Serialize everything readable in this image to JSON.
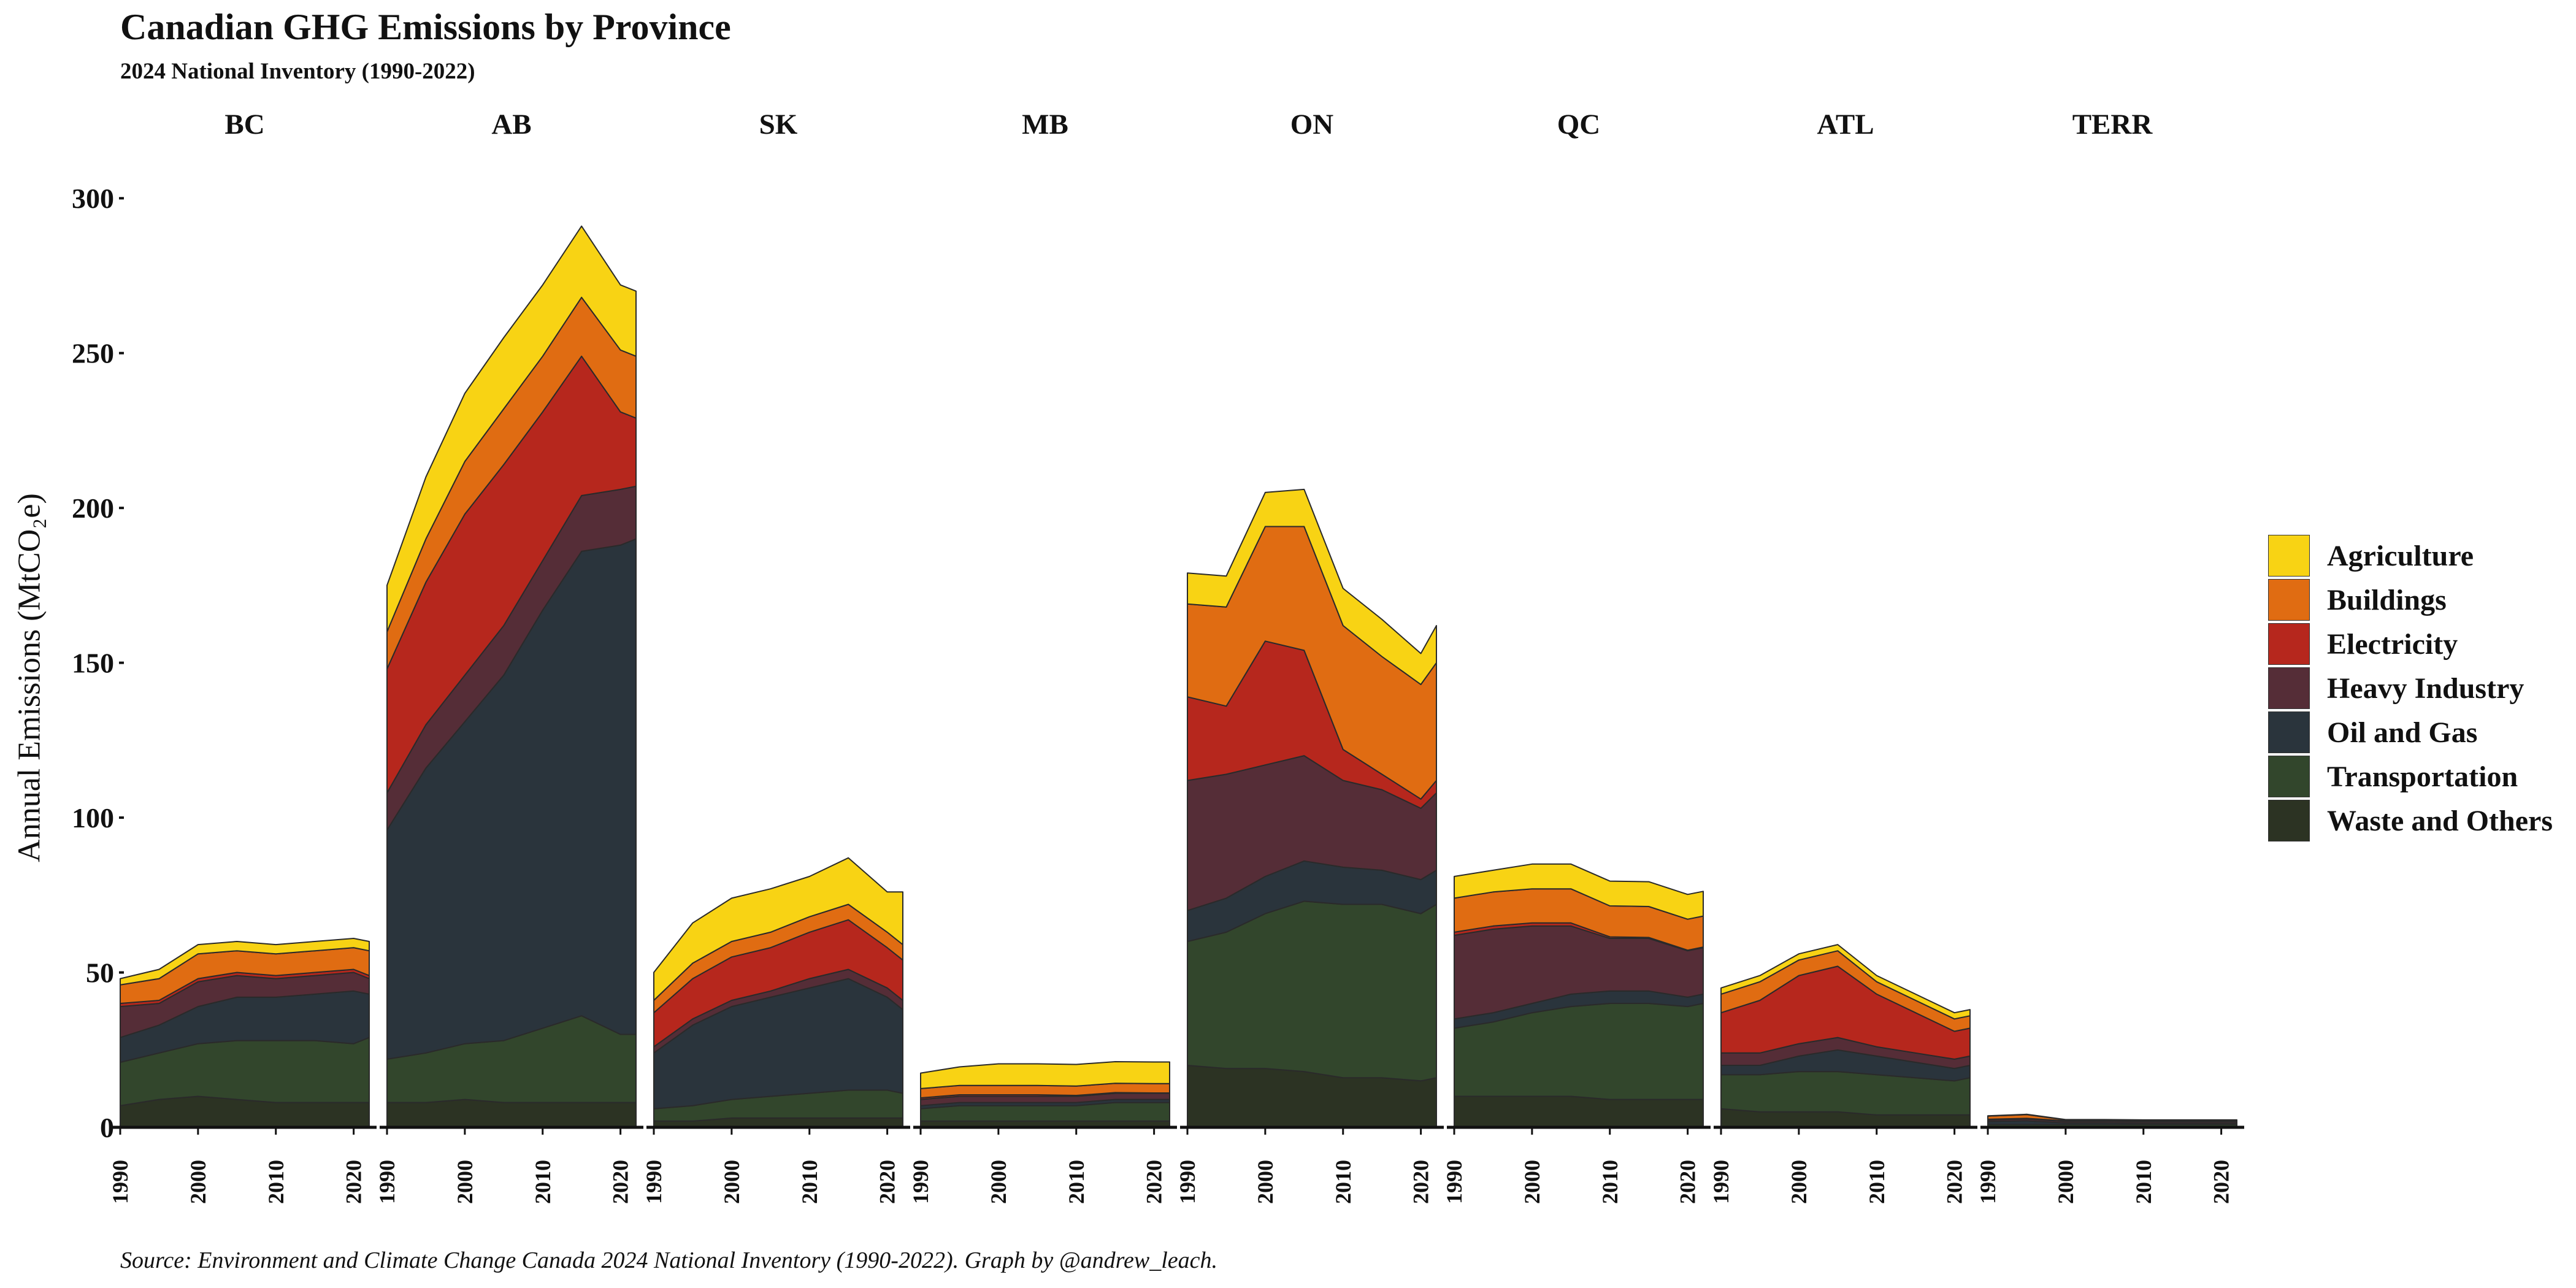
{
  "header": {
    "title": "Canadian GHG Emissions by Province",
    "subtitle": "2024 National Inventory (1990-2022)"
  },
  "caption": "Source: Environment and Climate Change Canada 2024 National Inventory (1990-2022). Graph by @andrew_leach.",
  "y_axis_label": "Annual Emissions  (MtCO₂e)",
  "colors": {
    "Agriculture": "#F8D314",
    "Buildings": "#E06C12",
    "Electricity": "#B6271D",
    "Heavy Industry": "#552D37",
    "Oil and Gas": "#2A343C",
    "Transportation": "#32462C",
    "Waste and Others": "#2C3323"
  },
  "legend": [
    "Agriculture",
    "Buildings",
    "Electricity",
    "Heavy Industry",
    "Oil and Gas",
    "Transportation",
    "Waste and Others"
  ],
  "chart_data": {
    "type": "area",
    "stacked": true,
    "facets": [
      "BC",
      "AB",
      "SK",
      "MB",
      "ON",
      "QC",
      "ATL",
      "TERR"
    ],
    "x": [
      1990,
      1995,
      2000,
      2005,
      2010,
      2015,
      2020,
      2022
    ],
    "x_ticks": [
      "1990",
      "2000",
      "2010",
      "2020"
    ],
    "ylim": [
      0,
      305
    ],
    "y_ticks": [
      0,
      50,
      100,
      150,
      200,
      250,
      300
    ],
    "stack_order_bottom_to_top": [
      "Waste and Others",
      "Transportation",
      "Oil and Gas",
      "Heavy Industry",
      "Electricity",
      "Buildings",
      "Agriculture"
    ],
    "series": {
      "BC": {
        "Waste and Others": [
          7,
          9,
          10,
          9,
          8,
          8,
          8,
          8
        ],
        "Transportation": [
          14,
          15,
          17,
          19,
          20,
          20,
          19,
          21
        ],
        "Oil and Gas": [
          8,
          9,
          12,
          14,
          14,
          15,
          17,
          14
        ],
        "Heavy Industry": [
          10,
          7,
          8,
          7,
          6,
          6,
          6,
          5
        ],
        "Electricity": [
          1,
          1,
          1,
          1,
          1,
          1,
          1,
          1
        ],
        "Buildings": [
          6,
          7,
          8,
          7,
          7,
          7,
          7,
          8
        ],
        "Agriculture": [
          2,
          3,
          3,
          3,
          3,
          3,
          3,
          3
        ]
      },
      "AB": {
        "Waste and Others": [
          8,
          8,
          9,
          8,
          8,
          8,
          8,
          8
        ],
        "Transportation": [
          14,
          16,
          18,
          20,
          24,
          28,
          22,
          22
        ],
        "Oil and Gas": [
          74,
          92,
          104,
          118,
          135,
          150,
          158,
          160
        ],
        "Heavy Industry": [
          12,
          14,
          15,
          16,
          16,
          18,
          18,
          17
        ],
        "Electricity": [
          40,
          46,
          52,
          52,
          48,
          45,
          25,
          22
        ],
        "Buildings": [
          12,
          14,
          17,
          18,
          18,
          19,
          20,
          20
        ],
        "Agriculture": [
          15,
          20,
          22,
          23,
          23,
          23,
          21,
          21
        ]
      },
      "SK": {
        "Waste and Others": [
          2,
          2,
          3,
          3,
          3,
          3,
          3,
          3
        ],
        "Transportation": [
          4,
          5,
          6,
          7,
          8,
          9,
          9,
          8
        ],
        "Oil and Gas": [
          18,
          26,
          30,
          32,
          34,
          36,
          30,
          27
        ],
        "Heavy Industry": [
          2,
          2,
          2,
          2,
          3,
          3,
          3,
          3
        ],
        "Electricity": [
          11,
          13,
          14,
          14,
          15,
          16,
          13,
          13
        ],
        "Buildings": [
          4,
          5,
          5,
          5,
          5,
          5,
          5,
          5
        ],
        "Agriculture": [
          9,
          13,
          14,
          14,
          13,
          15,
          13,
          17
        ]
      },
      "MB": {
        "Waste and Others": [
          2,
          2,
          2,
          2,
          2,
          2,
          2,
          2
        ],
        "Transportation": [
          4,
          5,
          5,
          5,
          5,
          6,
          6,
          6
        ],
        "Oil and Gas": [
          1,
          1,
          1,
          1,
          1,
          1,
          1,
          1
        ],
        "Heavy Industry": [
          2,
          2,
          2,
          2,
          2,
          2,
          2,
          2
        ],
        "Electricity": [
          0.5,
          0.5,
          0.5,
          0.5,
          0.3,
          0.2,
          0.1,
          0.1
        ],
        "Buildings": [
          3,
          3,
          3,
          3,
          3,
          3,
          3,
          3
        ],
        "Agriculture": [
          5,
          6,
          7,
          7,
          7,
          7,
          7,
          7
        ]
      },
      "ON": {
        "Waste and Others": [
          20,
          19,
          19,
          18,
          16,
          16,
          15,
          16
        ],
        "Transportation": [
          40,
          44,
          50,
          55,
          56,
          56,
          54,
          56
        ],
        "Oil and Gas": [
          10,
          11,
          12,
          13,
          12,
          11,
          11,
          11
        ],
        "Heavy Industry": [
          42,
          40,
          36,
          34,
          28,
          26,
          23,
          25
        ],
        "Electricity": [
          27,
          22,
          40,
          34,
          10,
          5,
          3,
          4
        ],
        "Buildings": [
          30,
          32,
          37,
          40,
          40,
          38,
          37,
          38
        ],
        "Agriculture": [
          10,
          10,
          11,
          12,
          12,
          12,
          10,
          12
        ]
      },
      "QC": {
        "Waste and Others": [
          10,
          10,
          10,
          10,
          9,
          9,
          9,
          9
        ],
        "Transportation": [
          22,
          24,
          27,
          29,
          31,
          31,
          30,
          31
        ],
        "Oil and Gas": [
          3,
          3,
          3,
          4,
          4,
          4,
          3,
          3
        ],
        "Heavy Industry": [
          27,
          27,
          25,
          22,
          17,
          17,
          15,
          15
        ],
        "Electricity": [
          1,
          1,
          1,
          1,
          0.5,
          0.3,
          0.2,
          0.2
        ],
        "Buildings": [
          11,
          11,
          11,
          11,
          10,
          10,
          10,
          10
        ],
        "Agriculture": [
          7,
          7,
          8,
          8,
          8,
          8,
          8,
          8
        ]
      },
      "ATL": {
        "Waste and Others": [
          6,
          5,
          5,
          5,
          4,
          4,
          4,
          4
        ],
        "Transportation": [
          11,
          12,
          13,
          13,
          13,
          12,
          11,
          12
        ],
        "Oil and Gas": [
          3,
          3,
          5,
          7,
          6,
          5,
          4,
          4
        ],
        "Heavy Industry": [
          4,
          4,
          4,
          4,
          3,
          3,
          3,
          3
        ],
        "Electricity": [
          13,
          17,
          22,
          23,
          17,
          13,
          9,
          9
        ],
        "Buildings": [
          6,
          6,
          5,
          5,
          4,
          4,
          4,
          4
        ],
        "Agriculture": [
          2,
          2,
          2,
          2,
          2,
          2,
          2,
          2
        ]
      },
      "TERR": {
        "Waste and Others": [
          0.3,
          0.3,
          0.3,
          0.3,
          0.3,
          0.3,
          0.3,
          0.3
        ],
        "Transportation": [
          0.6,
          0.6,
          0.6,
          0.6,
          0.6,
          0.6,
          0.6,
          0.6
        ],
        "Oil and Gas": [
          1.0,
          1.2,
          0.5,
          0.5,
          0.4,
          0.4,
          0.4,
          0.4
        ],
        "Heavy Industry": [
          0.5,
          0.6,
          0.5,
          0.5,
          0.5,
          0.5,
          0.5,
          0.5
        ],
        "Electricity": [
          0.2,
          0.2,
          0.2,
          0.2,
          0.2,
          0.2,
          0.2,
          0.2
        ],
        "Buildings": [
          1.0,
          1.2,
          0.3,
          0.3,
          0.3,
          0.3,
          0.3,
          0.3
        ],
        "Agriculture": [
          0.1,
          0.1,
          0.1,
          0.1,
          0.1,
          0.1,
          0.1,
          0.1
        ]
      }
    },
    "grid": false,
    "legend_position": "right"
  }
}
